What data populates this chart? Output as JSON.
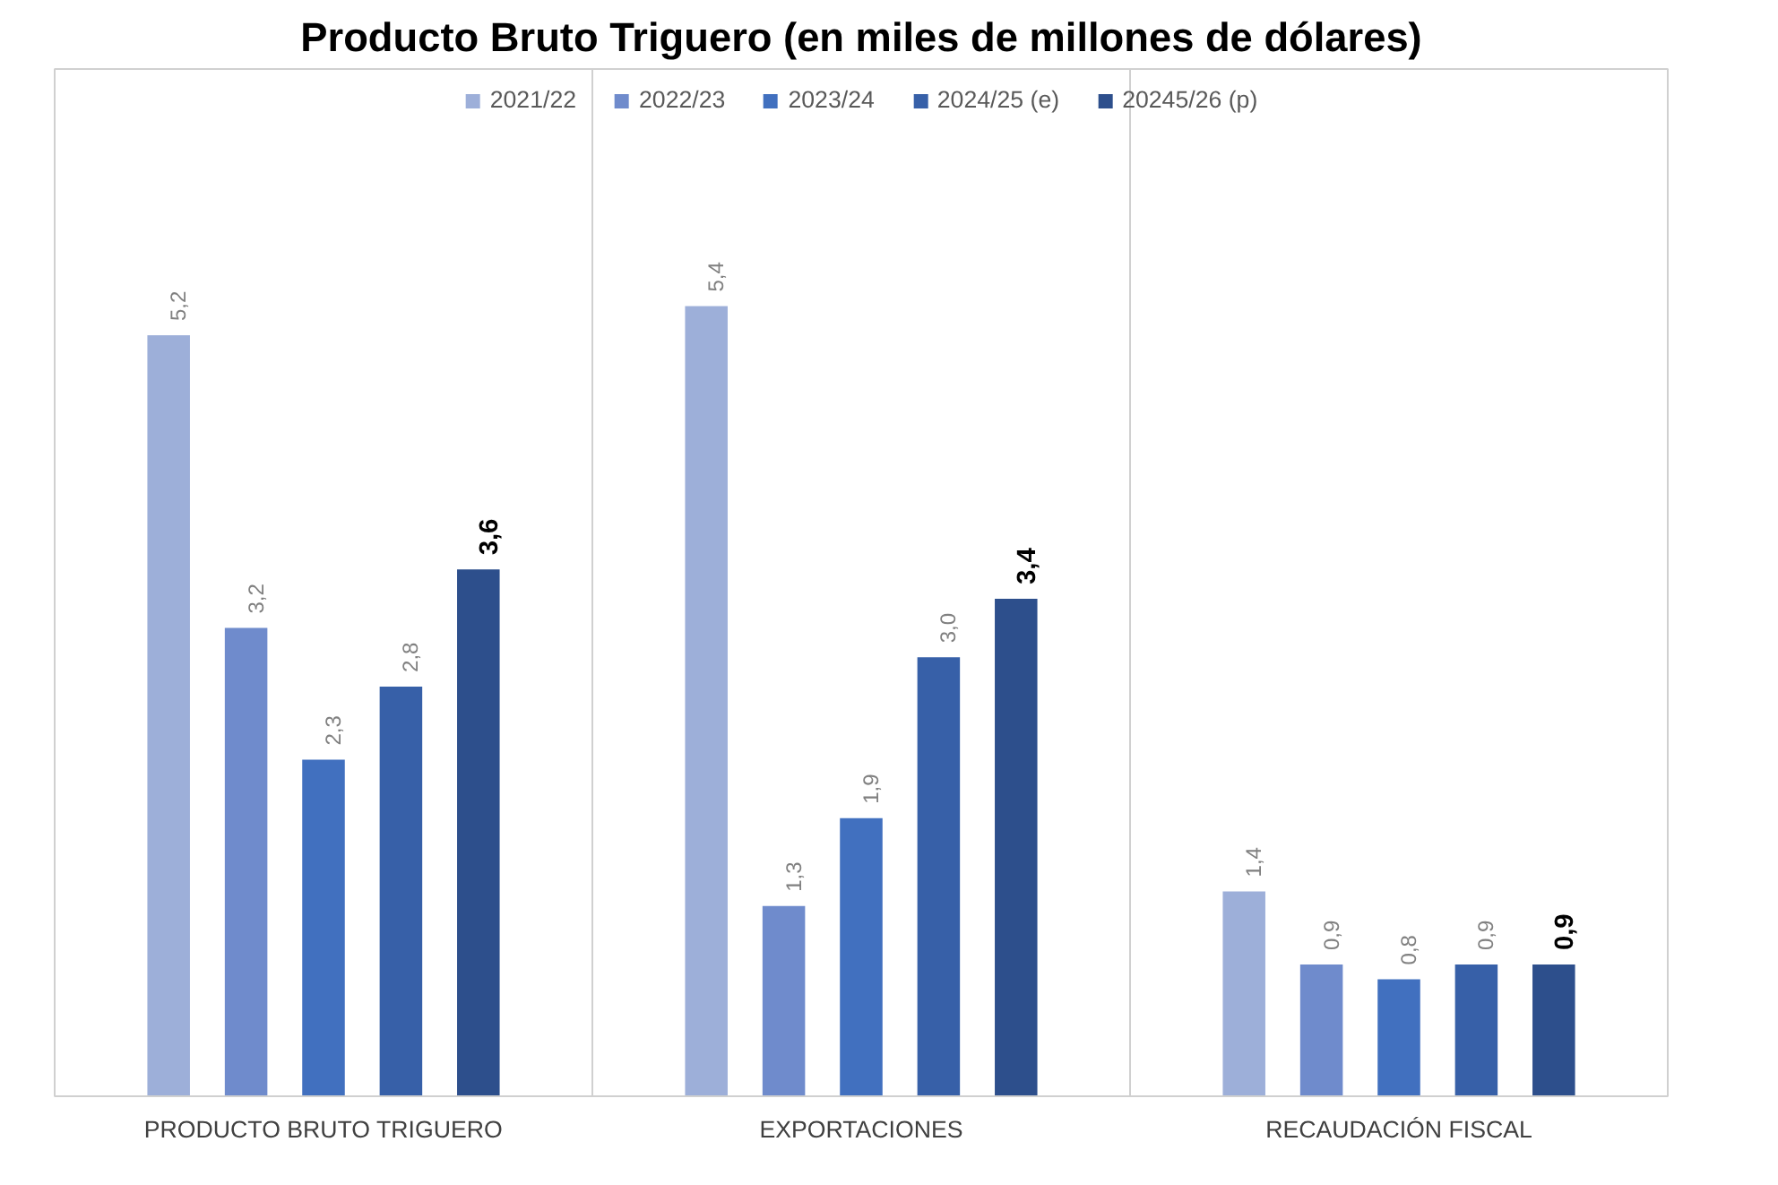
{
  "chart_data": {
    "type": "bar",
    "title": "Producto Bruto Triguero (en miles de millones de dólares)",
    "categories": [
      "PRODUCTO BRUTO TRIGUERO",
      "EXPORTACIONES",
      "RECAUDACIÓN FISCAL"
    ],
    "series": [
      {
        "name": "2021/22",
        "color": "#9dafd9",
        "values": [
          5.2,
          5.4,
          1.4
        ],
        "value_labels": [
          "5,2",
          "5,4",
          "1,4"
        ]
      },
      {
        "name": "2022/23",
        "color": "#6f8bcc",
        "values": [
          3.2,
          1.3,
          0.9
        ],
        "value_labels": [
          "3,2",
          "1,3",
          "0,9"
        ]
      },
      {
        "name": "2023/24",
        "color": "#4170bf",
        "values": [
          2.3,
          1.9,
          0.8
        ],
        "value_labels": [
          "2,3",
          "1,9",
          "0,8"
        ]
      },
      {
        "name": "2024/25 (e)",
        "color": "#3760a8",
        "values": [
          2.8,
          3.0,
          0.9
        ],
        "value_labels": [
          "2,8",
          "3,0",
          "0,9"
        ]
      },
      {
        "name": "20245/26 (p)",
        "color": "#2d4f8c",
        "values": [
          3.6,
          3.4,
          0.9
        ],
        "value_labels": [
          "3,6",
          "3,4",
          "0,9"
        ]
      }
    ],
    "legend": "top"
  }
}
